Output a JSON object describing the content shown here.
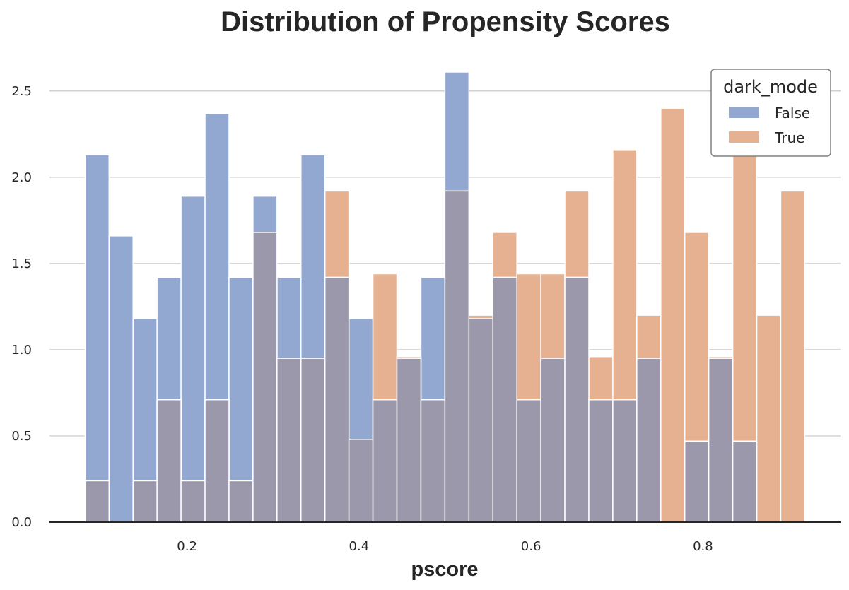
{
  "chart_data": {
    "type": "bar",
    "title": "Distribution of Propensity Scores",
    "xlabel": "pscore",
    "ylabel": "",
    "xlim": [
      0.04,
      0.96
    ],
    "ylim": [
      0,
      2.7
    ],
    "grid": "horizontal",
    "xticks": [
      0.2,
      0.4,
      0.6,
      0.8
    ],
    "xtick_labels": [
      "0.2",
      "0.4",
      "0.6",
      "0.8"
    ],
    "yticks": [
      0.0,
      0.5,
      1.0,
      1.5,
      2.0,
      2.5
    ],
    "ytick_labels": [
      "0.0",
      "0.5",
      "1.0",
      "1.5",
      "2.0",
      "2.5"
    ],
    "bin_edges": [
      0.0814,
      0.1093,
      0.1372,
      0.1651,
      0.193,
      0.2209,
      0.2488,
      0.2767,
      0.3046,
      0.3325,
      0.3604,
      0.3883,
      0.4162,
      0.4441,
      0.472,
      0.4999,
      0.5278,
      0.5557,
      0.5836,
      0.6115,
      0.6394,
      0.6673,
      0.6952,
      0.7231,
      0.751,
      0.7789,
      0.8068,
      0.8347,
      0.8626,
      0.8905,
      0.9184
    ],
    "legend": {
      "title": "dark_mode",
      "position": "top-right"
    },
    "series": [
      {
        "name": "False",
        "color": "#92a8d1",
        "values": [
          2.13,
          1.66,
          1.18,
          1.42,
          1.89,
          2.37,
          1.42,
          1.89,
          1.42,
          2.13,
          1.42,
          1.18,
          0.71,
          0.95,
          1.42,
          2.61,
          1.18,
          1.42,
          0.71,
          0.95,
          1.42,
          0.71,
          0.71,
          0.95,
          0.0,
          0.47,
          0.95,
          0.47,
          0.0,
          0.0
        ]
      },
      {
        "name": "True",
        "color": "#e6b190",
        "values": [
          0.24,
          0.0,
          0.24,
          0.71,
          0.24,
          0.71,
          0.24,
          1.68,
          0.95,
          0.95,
          1.92,
          0.48,
          1.44,
          0.96,
          0.71,
          1.92,
          1.2,
          1.68,
          1.44,
          1.44,
          1.92,
          0.96,
          2.16,
          1.2,
          2.4,
          1.68,
          0.96,
          2.16,
          1.2,
          1.92
        ]
      }
    ],
    "overlap_color": "#9c98ab"
  }
}
